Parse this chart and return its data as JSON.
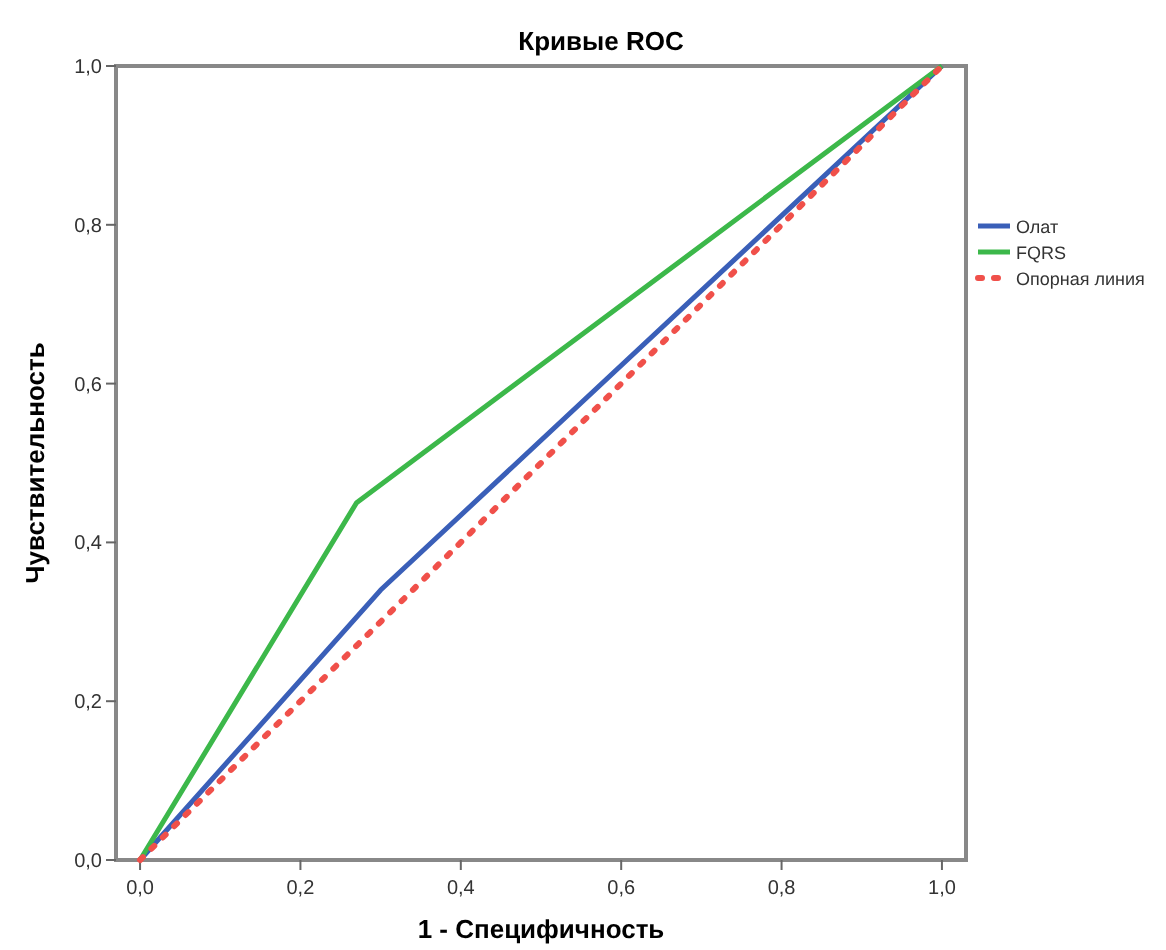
{
  "chart_data": {
    "type": "line",
    "title": "Кривые ROC",
    "xlabel": "1 - Специфичность",
    "ylabel": "Чувствительность",
    "xlim": [
      -0.03,
      1.03
    ],
    "ylim": [
      0,
      1
    ],
    "xticks": [
      {
        "value": 0,
        "label": "0,0"
      },
      {
        "value": 0.2,
        "label": "0,2"
      },
      {
        "value": 0.4,
        "label": "0,4"
      },
      {
        "value": 0.6,
        "label": "0,6"
      },
      {
        "value": 0.8,
        "label": "0,8"
      },
      {
        "value": 1,
        "label": "1,0"
      }
    ],
    "yticks": [
      {
        "value": 0,
        "label": "0,0"
      },
      {
        "value": 0.2,
        "label": "0,2"
      },
      {
        "value": 0.4,
        "label": "0,4"
      },
      {
        "value": 0.6,
        "label": "0,6"
      },
      {
        "value": 0.8,
        "label": "0,8"
      },
      {
        "value": 1,
        "label": "1,0"
      }
    ],
    "legend": "right",
    "grid": false,
    "series": [
      {
        "name": "Олат",
        "color": "#3a5fb8",
        "x": [
          0,
          0.3,
          1
        ],
        "values": [
          0,
          0.34,
          1
        ],
        "line_style": "solid"
      },
      {
        "name": "FQRS",
        "color": "#3cb84a",
        "x": [
          0,
          0.27,
          1
        ],
        "values": [
          0,
          0.45,
          1
        ],
        "line_style": "solid"
      },
      {
        "name": "Опорная линия",
        "color": "#f0504a",
        "x": [
          0,
          1
        ],
        "values": [
          0,
          1
        ],
        "line_style": "dotted"
      }
    ]
  }
}
